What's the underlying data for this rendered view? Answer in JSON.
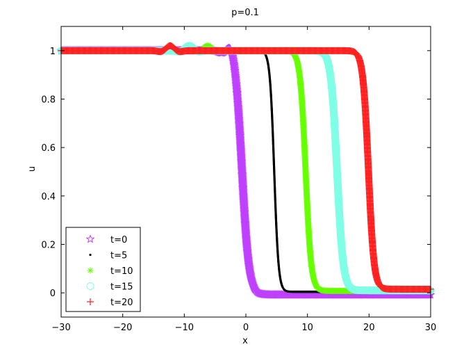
{
  "chart_data": {
    "type": "scatter",
    "title": "p=0.1",
    "xlabel": "x",
    "ylabel": "u",
    "xlim": [
      -30,
      30
    ],
    "ylim": [
      -0.1,
      1.1
    ],
    "xticks": [
      -30,
      -20,
      -10,
      0,
      10,
      20,
      30
    ],
    "xtick_labels": [
      "−30",
      "−20",
      "−10",
      "0",
      "10",
      "20",
      "30"
    ],
    "yticks": [
      0,
      0.2,
      0.4,
      0.6,
      0.8,
      1
    ],
    "ytick_labels": [
      "0",
      "0.2",
      "0.4",
      "0.6",
      "0.8",
      "1"
    ],
    "grid": false,
    "legend_position": "bottom-left",
    "series": [
      {
        "name": "t=0",
        "color": "#bf40ff",
        "marker": "star",
        "front": -0.6,
        "width": 0.55,
        "right_level": -0.008,
        "left_osc_amp": 0.0,
        "bump": {
          "x": -2.4,
          "amp": 0.035
        }
      },
      {
        "name": "t=5",
        "color": "#000000",
        "marker": "dot",
        "front": 4.6,
        "width": 0.35,
        "right_level": 0.004,
        "left_osc_amp": 0.0,
        "bump": null
      },
      {
        "name": "t=10",
        "color": "#66ff00",
        "marker": "asterisk",
        "front": 9.7,
        "width": 0.45,
        "right_level": 0.008,
        "left_osc_amp": 0.0,
        "bump": {
          "x": -6.2,
          "amp": 0.02
        }
      },
      {
        "name": "t=15",
        "color": "#7fffe6",
        "marker": "circle",
        "front": 14.8,
        "width": 0.5,
        "right_level": 0.01,
        "left_osc_amp": 0.0,
        "bump": {
          "x": -9.2,
          "amp": 0.02
        }
      },
      {
        "name": "t=20",
        "color": "#ff2020",
        "marker": "plus",
        "front": 19.9,
        "width": 0.45,
        "right_level": 0.015,
        "left_osc_amp": 0.0,
        "bump": {
          "x": -12.3,
          "amp": 0.02
        }
      }
    ]
  }
}
